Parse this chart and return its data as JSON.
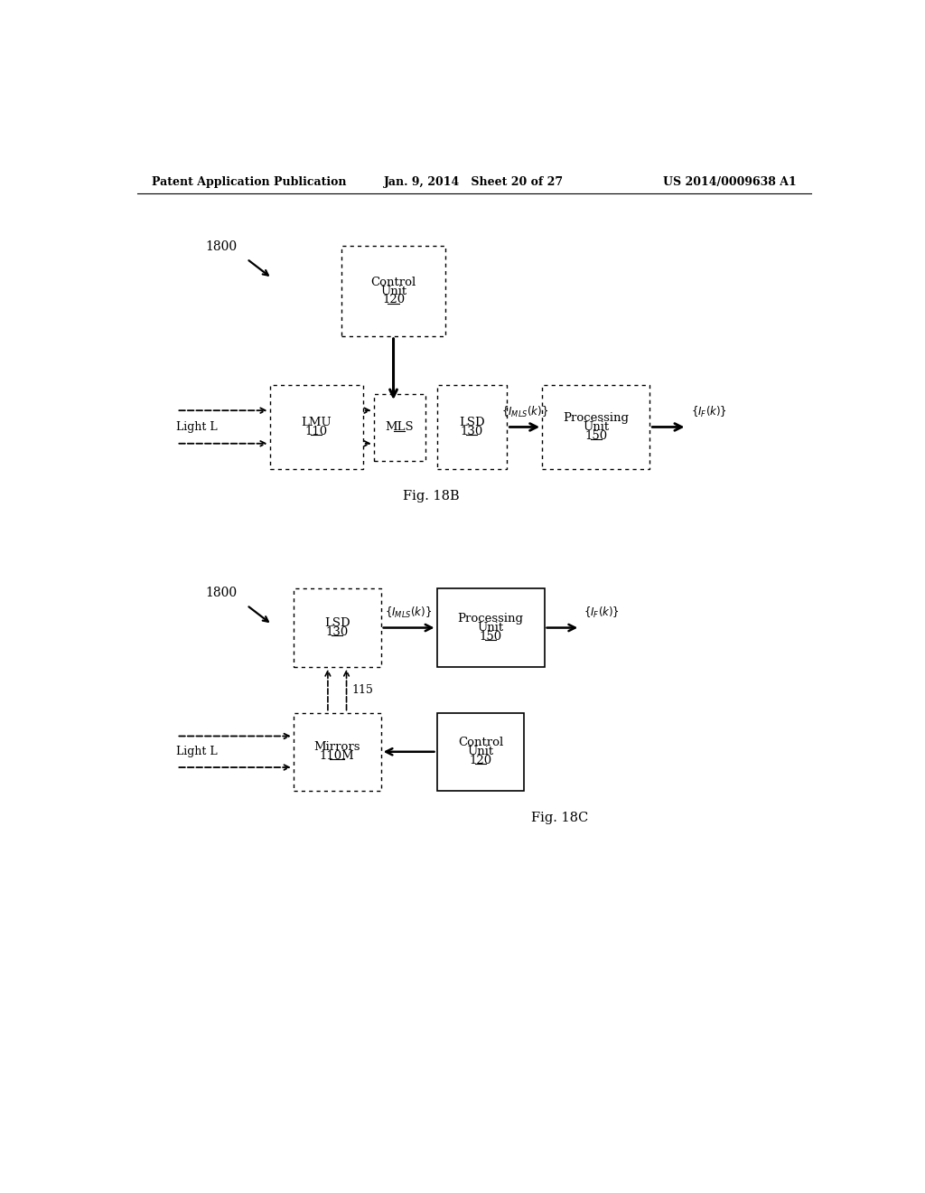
{
  "header_left": "Patent Application Publication",
  "header_mid": "Jan. 9, 2014   Sheet 20 of 27",
  "header_right": "US 2014/0009638 A1",
  "fig18b_label": "Fig. 18B",
  "fig18c_label": "Fig. 18C",
  "bg_color": "#ffffff"
}
